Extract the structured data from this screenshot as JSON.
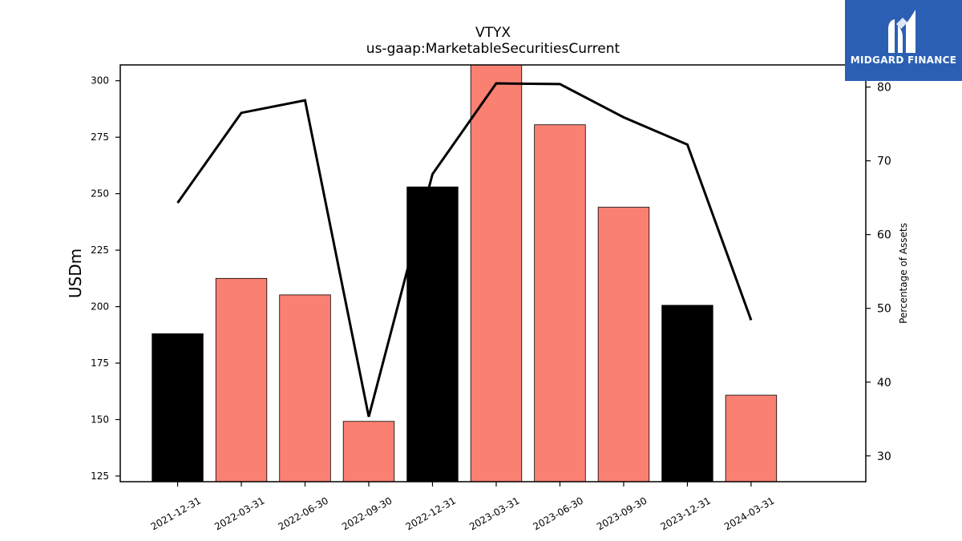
{
  "brand": {
    "name": "MIDGARD FINANCE",
    "logo_icon": "midgard-m-logo-icon",
    "background": "#2b5fb4"
  },
  "chart_data": {
    "type": "bar",
    "title": "VTYX",
    "subtitle": "us-gaap:MarketableSecuritiesCurrent",
    "categories": [
      "2021-12-31",
      "2022-03-31",
      "2022-06-30",
      "2022-09-30",
      "2022-12-31",
      "2023-03-31",
      "2023-06-30",
      "2023-09-30",
      "2023-12-31",
      "2024-03-31"
    ],
    "series": [
      {
        "type": "bar",
        "axis": "left",
        "values": [
          188,
          212.5,
          205.2,
          149.2,
          253,
          308,
          280.5,
          244,
          200.6,
          160.8
        ],
        "colors": [
          "#000000",
          "#fa8072",
          "#fa8072",
          "#fa8072",
          "#000000",
          "#fa8072",
          "#fa8072",
          "#fa8072",
          "#000000",
          "#fa8072"
        ]
      },
      {
        "type": "line",
        "axis": "right",
        "color": "#000000",
        "values": [
          64.3,
          76.5,
          78.2,
          35.3,
          68.2,
          80.5,
          80.4,
          75.9,
          72.2,
          48.4
        ]
      }
    ],
    "ylabel": "USDm",
    "ylabel_right": "Percentage of Assets",
    "ylim": [
      122.5,
      307
    ],
    "ylim_right": [
      26.5,
      83
    ],
    "yticks": [
      125,
      150,
      175,
      200,
      225,
      250,
      275,
      300
    ],
    "yticks_right": [
      30,
      40,
      50,
      60,
      70,
      80
    ],
    "grid": false,
    "legend": "none"
  }
}
